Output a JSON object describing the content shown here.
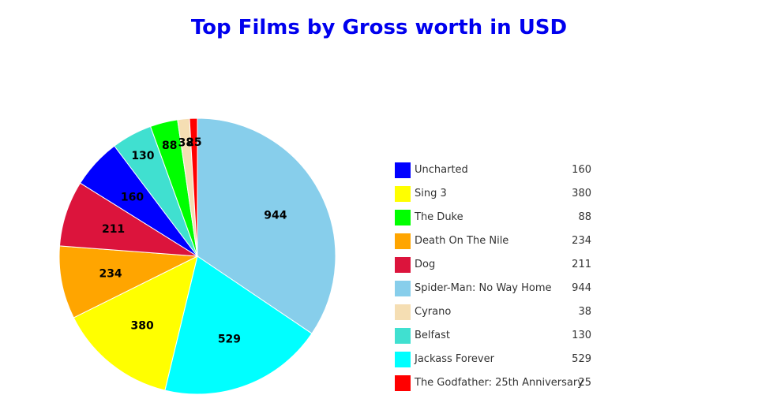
{
  "chart_data": {
    "type": "pie",
    "title": "Top Films by Gross worth in USD",
    "slices": [
      {
        "label": "Spider-Man: No Way Home",
        "value": 944,
        "color": "#87ceeb"
      },
      {
        "label": "Jackass Forever",
        "value": 529,
        "color": "#00ffff"
      },
      {
        "label": "Sing 3",
        "value": 380,
        "color": "#ffff00"
      },
      {
        "label": "Death On The Nile",
        "value": 234,
        "color": "#ffa500"
      },
      {
        "label": "Dog",
        "value": 211,
        "color": "#dc143c"
      },
      {
        "label": "Uncharted",
        "value": 160,
        "color": "#0000ff"
      },
      {
        "label": "Belfast",
        "value": 130,
        "color": "#40e0d0"
      },
      {
        "label": "The Duke",
        "value": 88,
        "color": "#00ff00"
      },
      {
        "label": "Cyrano",
        "value": 38,
        "color": "#f5deb3"
      },
      {
        "label": "The Godfather: 25th Anniversary",
        "value": 25,
        "color": "#ff0000"
      }
    ],
    "legend": {
      "placement": "right",
      "order": [
        "Uncharted",
        "Sing 3",
        "The Duke",
        "Death On The Nile",
        "Dog",
        "Spider-Man: No Way Home",
        "Cyrano",
        "Belfast",
        "Jackass Forever",
        "The Godfather: 25th Anniversary"
      ]
    }
  }
}
